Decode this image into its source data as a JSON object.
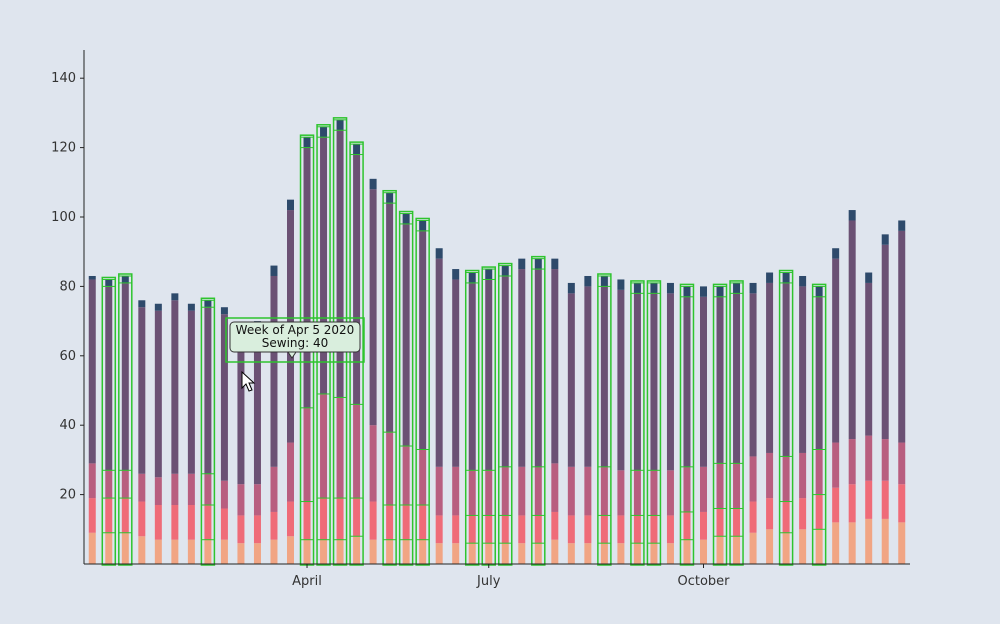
{
  "chart_data": {
    "type": "bar",
    "stacked": true,
    "title": "",
    "xlabel": "",
    "ylabel": "",
    "ylim": [
      0,
      150
    ],
    "y_ticks": [
      20,
      40,
      60,
      80,
      100,
      120,
      140
    ],
    "x_ticks": [
      {
        "label": "April",
        "bar_index": 13
      },
      {
        "label": "July",
        "bar_index": 24
      },
      {
        "label": "October",
        "bar_index": 37
      }
    ],
    "grid": false,
    "bar_count": 50,
    "series": [
      {
        "color": "#f1a584",
        "values": [
          9,
          9,
          9,
          8,
          7,
          7,
          7,
          7,
          7,
          6,
          6,
          7,
          8,
          7,
          7,
          7,
          8,
          7,
          7,
          7,
          7,
          6,
          6,
          6,
          6,
          6,
          6,
          6,
          7,
          6,
          6,
          6,
          6,
          6,
          6,
          6,
          7,
          7,
          8,
          8,
          9,
          10,
          9,
          10,
          10,
          12,
          12,
          13,
          13,
          12
        ]
      },
      {
        "color": "#ef6b78",
        "values": [
          10,
          10,
          10,
          10,
          10,
          10,
          10,
          10,
          9,
          8,
          8,
          8,
          10,
          11,
          12,
          12,
          11,
          11,
          10,
          10,
          10,
          8,
          8,
          8,
          8,
          8,
          8,
          8,
          8,
          8,
          8,
          8,
          8,
          8,
          8,
          8,
          8,
          8,
          8,
          8,
          9,
          9,
          9,
          9,
          10,
          10,
          11,
          11,
          11,
          11
        ]
      },
      {
        "color": "#b85e7f",
        "values": [
          10,
          8,
          8,
          8,
          8,
          9,
          9,
          9,
          8,
          9,
          9,
          13,
          17,
          27,
          30,
          29,
          27,
          22,
          21,
          17,
          16,
          14,
          14,
          13,
          13,
          14,
          14,
          14,
          14,
          14,
          14,
          14,
          13,
          13,
          13,
          13,
          13,
          13,
          13,
          13,
          13,
          13,
          13,
          13,
          13,
          13,
          13,
          13,
          12,
          12
        ]
      },
      {
        "color": "#6b5174",
        "values": [
          53,
          53,
          54,
          48,
          48,
          50,
          47,
          48,
          48,
          42,
          45,
          55,
          67,
          75,
          74,
          77,
          72,
          68,
          66,
          64,
          63,
          60,
          54,
          54,
          55,
          55,
          57,
          57,
          56,
          50,
          52,
          52,
          52,
          51,
          51,
          51,
          49,
          49,
          48,
          49,
          47,
          49,
          50,
          48,
          44,
          53,
          63,
          44,
          56,
          61
        ]
      },
      {
        "color": "#2e4a6b",
        "values": [
          1,
          2,
          2,
          2,
          2,
          2,
          2,
          2,
          2,
          2,
          2,
          3,
          3,
          3,
          3,
          3,
          3,
          3,
          3,
          3,
          3,
          3,
          3,
          3,
          3,
          3,
          3,
          3,
          3,
          3,
          3,
          3,
          3,
          3,
          3,
          3,
          3,
          3,
          3,
          3,
          3,
          3,
          3,
          3,
          3,
          3,
          3,
          3,
          3,
          3
        ]
      }
    ],
    "highlighted_bars": [
      1,
      2,
      7,
      13,
      14,
      15,
      16,
      18,
      19,
      20,
      23,
      24,
      25,
      27,
      31,
      33,
      34,
      36,
      38,
      39,
      42,
      44
    ],
    "tooltip": {
      "line1": "Week of Apr 5 2020",
      "line2": "Sewing: 40",
      "bar_index": 13
    }
  }
}
